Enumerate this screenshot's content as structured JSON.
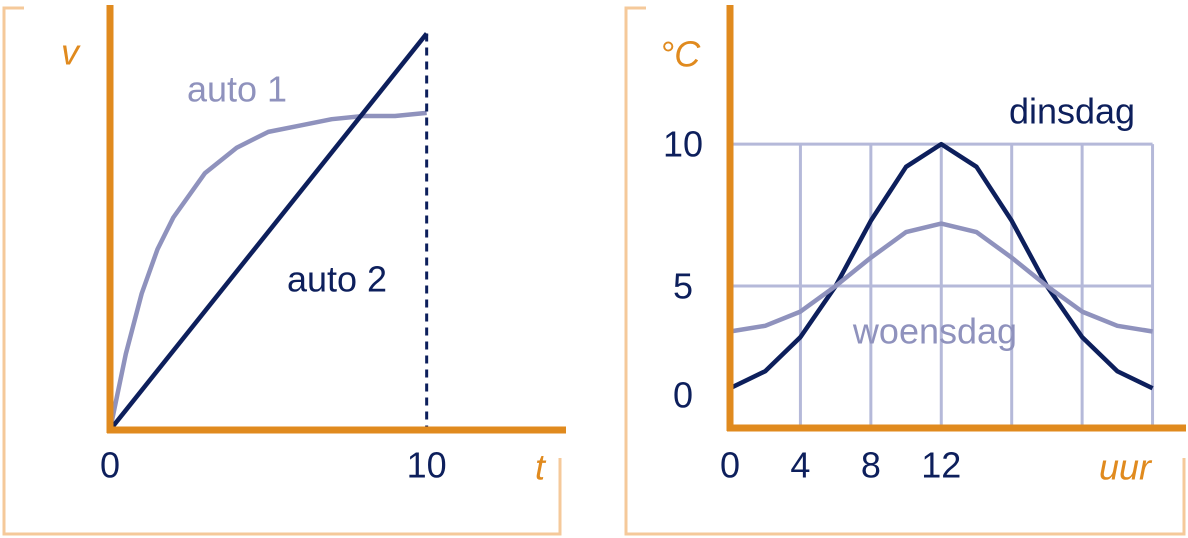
{
  "chart_data": [
    {
      "type": "line",
      "x_label": "t",
      "y_label": "v",
      "xlim": [
        0,
        14.4
      ],
      "ylim": [
        0,
        13.4
      ],
      "xticks": [
        0,
        10
      ],
      "yticks": [],
      "series": [
        {
          "name": "auto 1",
          "color": "#8f92bd",
          "x": [
            0,
            0.5,
            1,
            1.5,
            2,
            3,
            4,
            5,
            6,
            7,
            8,
            9,
            10
          ],
          "values": [
            0,
            2.4,
            4.3,
            5.7,
            6.7,
            8.1,
            8.9,
            9.4,
            9.6,
            9.8,
            9.9,
            9.9,
            10.0
          ]
        },
        {
          "name": "auto 2",
          "color": "#0d1f5c",
          "x": [
            0,
            10
          ],
          "values": [
            0,
            12.5
          ]
        }
      ]
    },
    {
      "type": "line",
      "x_label": "uur",
      "y_label": "°C",
      "xlim": [
        0,
        25.9
      ],
      "ylim": [
        0,
        14.9
      ],
      "xticks": [
        0,
        4,
        8,
        12
      ],
      "yticks": [
        0,
        5,
        10
      ],
      "grid": true,
      "xgrid": [
        0,
        4,
        8,
        12,
        16,
        20,
        24
      ],
      "series": [
        {
          "name": "dinsdag",
          "color": "#0d1f5c",
          "x": [
            0,
            2,
            4,
            6,
            8,
            10,
            12,
            14,
            16,
            18,
            20,
            22,
            24
          ],
          "values": [
            1.4,
            2.0,
            3.2,
            5.0,
            7.3,
            9.2,
            10.0,
            9.2,
            7.3,
            5.0,
            3.2,
            2.0,
            1.4
          ]
        },
        {
          "name": "woensdag",
          "color": "#8f92bd",
          "x": [
            0,
            2,
            4,
            6,
            8,
            10,
            12,
            14,
            16,
            18,
            20,
            22,
            24
          ],
          "values": [
            3.4,
            3.6,
            4.1,
            5.0,
            6.0,
            6.9,
            7.2,
            6.9,
            6.0,
            5.0,
            4.1,
            3.6,
            3.4
          ]
        }
      ]
    }
  ]
}
